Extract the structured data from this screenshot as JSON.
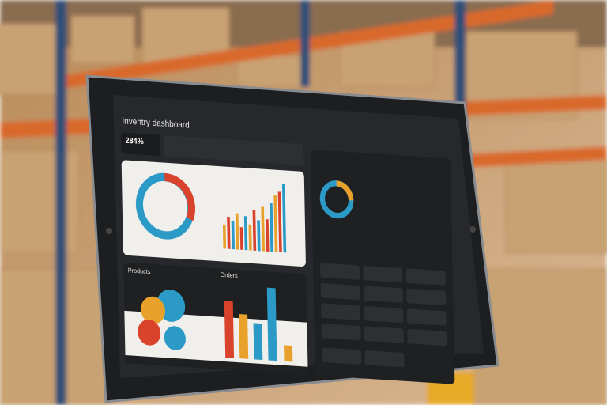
{
  "header": {
    "title": "Inventry dashboard",
    "stat": "284%"
  },
  "panels": {
    "products": "Products",
    "orders": "Orders"
  }
}
